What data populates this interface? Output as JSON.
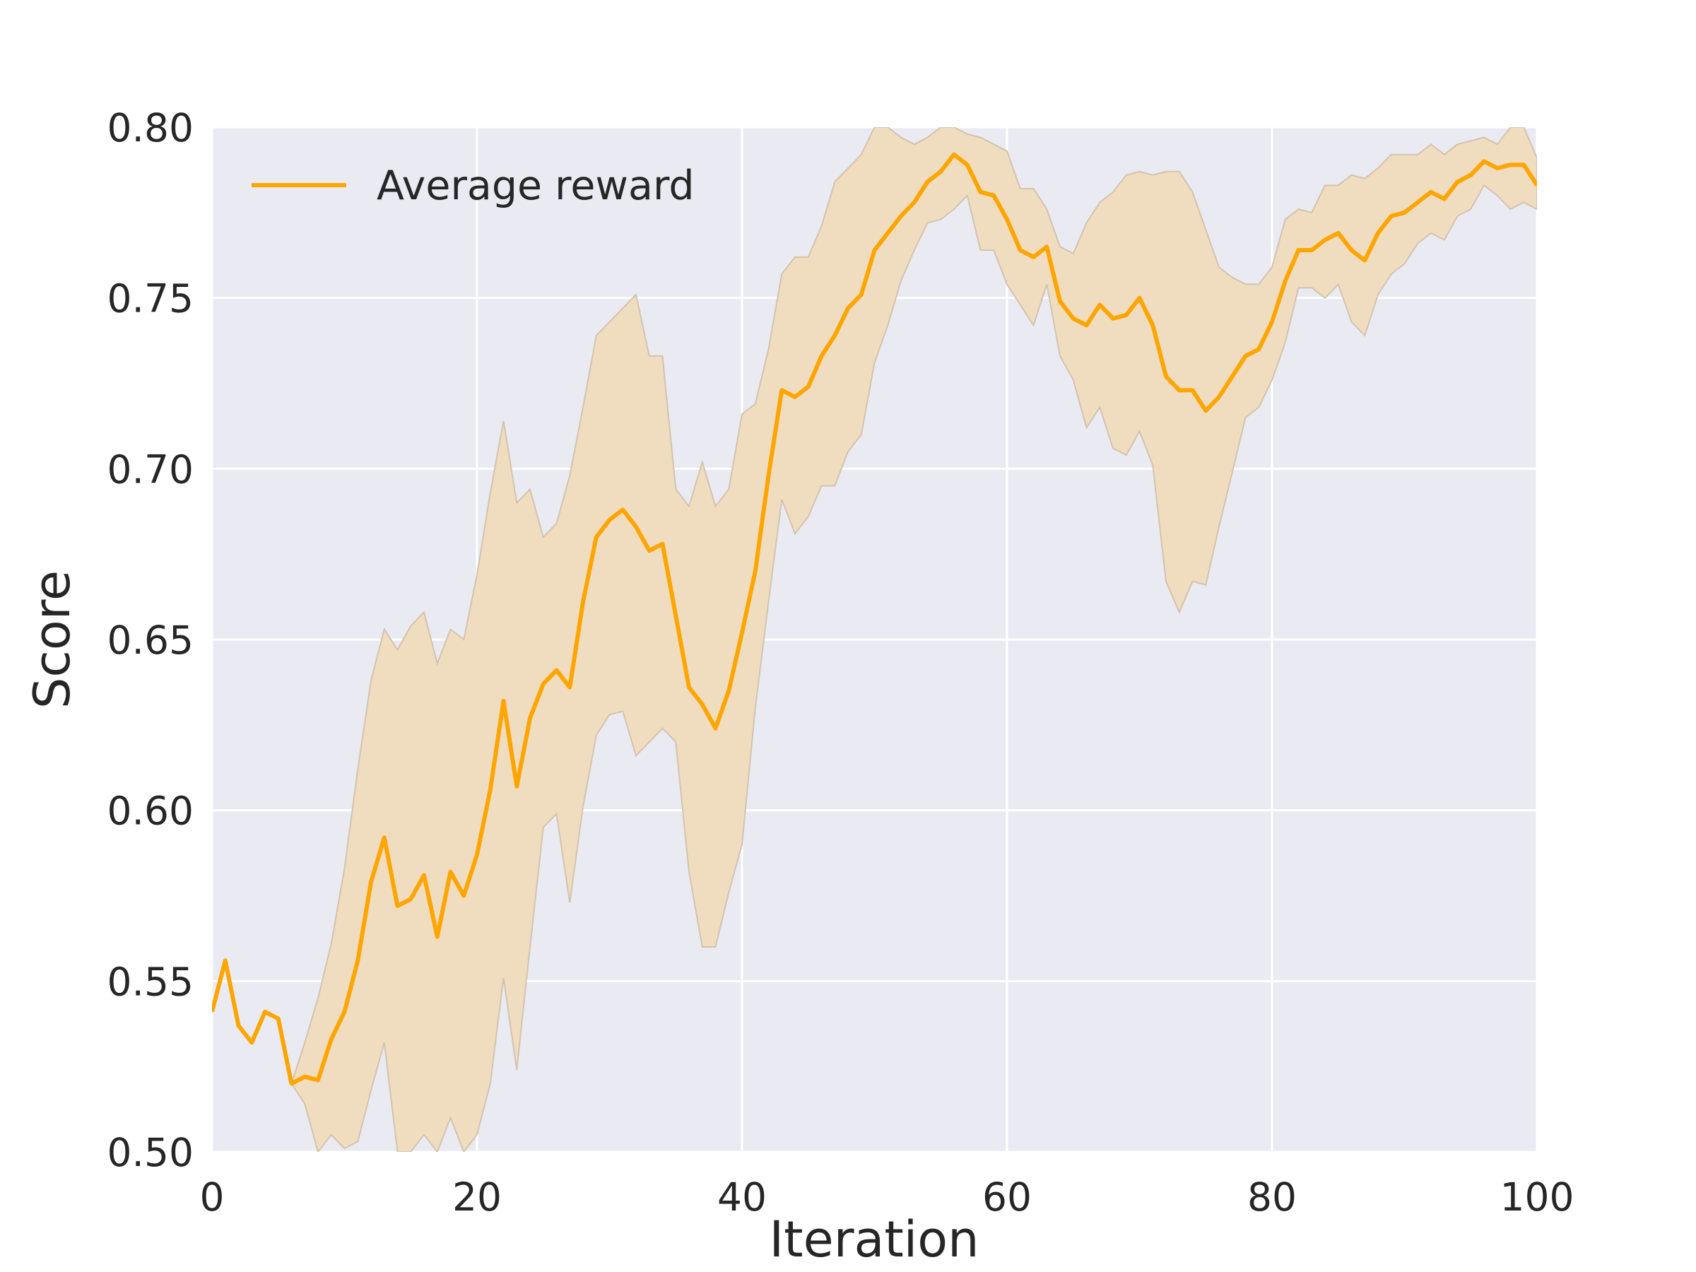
{
  "chart_data": {
    "type": "line",
    "title": "",
    "xlabel": "Iteration",
    "ylabel": "Score",
    "xlim": [
      0,
      100
    ],
    "ylim": [
      0.5,
      0.8
    ],
    "xticks": [
      "0",
      "20",
      "40",
      "60",
      "80",
      "100"
    ],
    "yticks": [
      "0.50",
      "0.55",
      "0.60",
      "0.65",
      "0.70",
      "0.75",
      "0.80"
    ],
    "grid": true,
    "legend_position": "top-left",
    "colors": {
      "line": "#ffa500",
      "band": "#f0dcbf",
      "plot_background": "#eaeaf2",
      "grid": "#ffffff",
      "text": "#262626"
    },
    "series": [
      {
        "name": "Average reward",
        "x": [
          0,
          1,
          2,
          3,
          4,
          5,
          6,
          7,
          8,
          9,
          10,
          11,
          12,
          13,
          14,
          15,
          16,
          17,
          18,
          19,
          20,
          21,
          22,
          23,
          24,
          25,
          26,
          27,
          28,
          29,
          30,
          31,
          32,
          33,
          34,
          35,
          36,
          37,
          38,
          39,
          40,
          41,
          42,
          43,
          44,
          45,
          46,
          47,
          48,
          49,
          50,
          51,
          52,
          53,
          54,
          55,
          56,
          57,
          58,
          59,
          60,
          61,
          62,
          63,
          64,
          65,
          66,
          67,
          68,
          69,
          70,
          71,
          72,
          73,
          74,
          75,
          76,
          77,
          78,
          79,
          80,
          81,
          82,
          83,
          84,
          85,
          86,
          87,
          88,
          89,
          90,
          91,
          92,
          93,
          94,
          95,
          96,
          97,
          98,
          99,
          100
        ],
        "y": [
          0.541,
          0.556,
          0.537,
          0.532,
          0.541,
          0.539,
          0.52,
          0.522,
          0.521,
          0.533,
          0.541,
          0.556,
          0.579,
          0.592,
          0.572,
          0.574,
          0.581,
          0.563,
          0.582,
          0.575,
          0.587,
          0.606,
          0.632,
          0.607,
          0.627,
          0.637,
          0.641,
          0.636,
          0.661,
          0.68,
          0.685,
          0.688,
          0.683,
          0.676,
          0.678,
          0.657,
          0.636,
          0.631,
          0.624,
          0.635,
          0.652,
          0.67,
          0.698,
          0.723,
          0.721,
          0.724,
          0.733,
          0.739,
          0.747,
          0.751,
          0.764,
          0.769,
          0.774,
          0.778,
          0.784,
          0.787,
          0.792,
          0.789,
          0.781,
          0.78,
          0.773,
          0.764,
          0.762,
          0.765,
          0.749,
          0.744,
          0.742,
          0.748,
          0.744,
          0.745,
          0.75,
          0.742,
          0.727,
          0.723,
          0.723,
          0.717,
          0.721,
          0.727,
          0.733,
          0.735,
          0.743,
          0.755,
          0.764,
          0.764,
          0.767,
          0.769,
          0.764,
          0.761,
          0.769,
          0.774,
          0.775,
          0.778,
          0.781,
          0.779,
          0.784,
          0.786,
          0.79,
          0.788,
          0.789,
          0.789,
          0.783
        ],
        "lower": [
          0.541,
          0.556,
          0.537,
          0.532,
          0.541,
          0.539,
          0.52,
          0.514,
          0.5,
          0.505,
          0.501,
          0.503,
          0.518,
          0.532,
          0.5,
          0.5,
          0.505,
          0.5,
          0.51,
          0.5,
          0.505,
          0.52,
          0.551,
          0.524,
          0.56,
          0.595,
          0.599,
          0.573,
          0.601,
          0.622,
          0.628,
          0.629,
          0.616,
          0.62,
          0.624,
          0.62,
          0.582,
          0.56,
          0.56,
          0.576,
          0.59,
          0.63,
          0.661,
          0.691,
          0.681,
          0.686,
          0.695,
          0.695,
          0.705,
          0.71,
          0.731,
          0.742,
          0.755,
          0.764,
          0.772,
          0.773,
          0.776,
          0.78,
          0.764,
          0.764,
          0.754,
          0.748,
          0.742,
          0.754,
          0.733,
          0.726,
          0.712,
          0.718,
          0.706,
          0.704,
          0.711,
          0.701,
          0.667,
          0.658,
          0.667,
          0.666,
          0.683,
          0.699,
          0.715,
          0.718,
          0.726,
          0.737,
          0.753,
          0.753,
          0.75,
          0.754,
          0.743,
          0.739,
          0.751,
          0.757,
          0.76,
          0.766,
          0.769,
          0.767,
          0.774,
          0.776,
          0.783,
          0.78,
          0.776,
          0.778,
          0.776
        ],
        "upper": [
          0.541,
          0.556,
          0.537,
          0.532,
          0.541,
          0.539,
          0.52,
          0.532,
          0.545,
          0.561,
          0.583,
          0.612,
          0.638,
          0.653,
          0.647,
          0.654,
          0.658,
          0.643,
          0.653,
          0.65,
          0.669,
          0.693,
          0.714,
          0.69,
          0.694,
          0.68,
          0.684,
          0.698,
          0.718,
          0.739,
          0.743,
          0.747,
          0.751,
          0.733,
          0.733,
          0.694,
          0.689,
          0.702,
          0.689,
          0.694,
          0.716,
          0.719,
          0.735,
          0.757,
          0.762,
          0.762,
          0.771,
          0.784,
          0.788,
          0.792,
          0.8,
          0.8,
          0.797,
          0.795,
          0.797,
          0.8,
          0.8,
          0.798,
          0.797,
          0.795,
          0.793,
          0.782,
          0.782,
          0.776,
          0.765,
          0.763,
          0.772,
          0.778,
          0.781,
          0.786,
          0.787,
          0.786,
          0.787,
          0.787,
          0.781,
          0.77,
          0.759,
          0.756,
          0.754,
          0.754,
          0.759,
          0.773,
          0.776,
          0.775,
          0.783,
          0.783,
          0.786,
          0.785,
          0.788,
          0.792,
          0.792,
          0.792,
          0.795,
          0.792,
          0.795,
          0.796,
          0.797,
          0.795,
          0.8,
          0.8,
          0.791
        ]
      }
    ]
  }
}
